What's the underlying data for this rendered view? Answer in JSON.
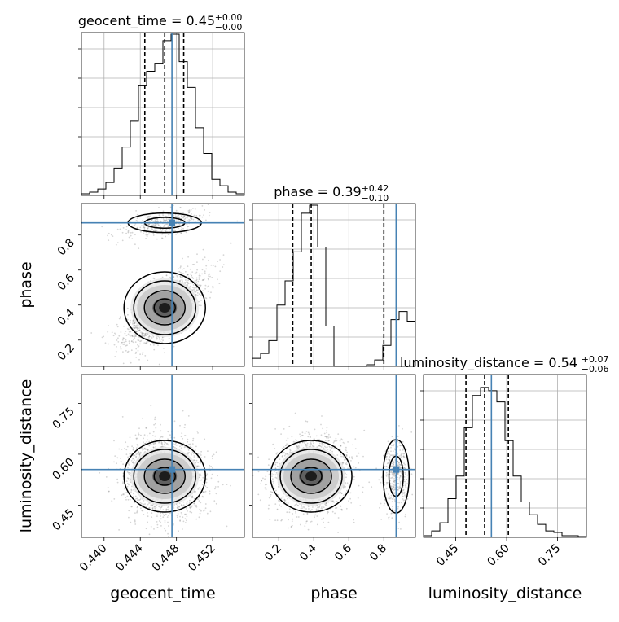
{
  "chart_data": {
    "type": "corner",
    "parameters": [
      "geocent_time",
      "phase",
      "luminosity_distance"
    ],
    "truths": {
      "geocent_time": 0.4475,
      "phase": 0.87,
      "luminosity_distance": 0.555
    },
    "quantiles": [
      0.16,
      0.5,
      0.84
    ],
    "colors": {
      "truth": "#4682b4",
      "quantile": "#000000",
      "histogram": "#000000",
      "scatter": "#888888"
    },
    "grid": true,
    "titles": {
      "geocent_time": {
        "text": "geocent_time = 0.45",
        "plus": "+0.00",
        "minus": "−0.00",
        "median": 0.45,
        "err_plus": 0.0,
        "err_minus": 0.0
      },
      "phase": {
        "text": "phase = 0.39",
        "plus": "+0.42",
        "minus": "−0.10",
        "median": 0.39,
        "err_plus": 0.42,
        "err_minus": 0.1
      },
      "luminosity_distance": {
        "text": "luminosity_distance = 0.54",
        "plus": "+0.07",
        "minus": "−0.06",
        "median": 0.54,
        "err_plus": 0.07,
        "err_minus": 0.06
      }
    },
    "axis_labels": {
      "geocent_time": "geocent_time",
      "phase": "phase",
      "luminosity_distance": "luminosity_distance"
    },
    "ranges": {
      "geocent_time": [
        0.4375,
        0.4555
      ],
      "phase": [
        0.05,
        0.98
      ],
      "luminosity_distance": [
        0.355,
        0.835
      ]
    },
    "ticks": {
      "geocent_time": {
        "values": [
          0.44,
          0.444,
          0.448,
          0.452
        ],
        "labels": [
          "0.440",
          "0.444",
          "0.448",
          "0.452"
        ]
      },
      "phase_x": {
        "values": [
          0.2,
          0.4,
          0.6,
          0.8
        ],
        "labels": [
          "0.2",
          "0.4",
          "0.6",
          "0.8"
        ]
      },
      "phase_y": {
        "values": [
          0.2,
          0.4,
          0.6,
          0.8
        ],
        "labels": [
          "0.2",
          "0.4",
          "0.6",
          "0.8"
        ]
      },
      "luminosity_distance": {
        "values": [
          0.45,
          0.6,
          0.75
        ],
        "labels": [
          "0.45",
          "0.60",
          "0.75"
        ]
      }
    },
    "quantile_values": {
      "geocent_time": [
        0.4445,
        0.4467,
        0.4488
      ],
      "phase": [
        0.28,
        0.385,
        0.8
      ],
      "luminosity_distance": [
        0.48,
        0.535,
        0.605
      ]
    },
    "histograms": {
      "geocent_time": {
        "bin_edges": [
          0.4375,
          0.4384,
          0.4393,
          0.4402,
          0.4411,
          0.442,
          0.4429,
          0.4438,
          0.4447,
          0.4456,
          0.4465,
          0.4474,
          0.4483,
          0.4492,
          0.4501,
          0.451,
          0.4519,
          0.4528,
          0.4537,
          0.4546,
          0.4555
        ],
        "counts": [
          0.01,
          0.02,
          0.04,
          0.08,
          0.17,
          0.3,
          0.46,
          0.68,
          0.77,
          0.82,
          0.96,
          1.0,
          0.83,
          0.67,
          0.42,
          0.26,
          0.1,
          0.06,
          0.02,
          0.01
        ]
      },
      "phase": {
        "bin_edges": [
          0.05,
          0.0965,
          0.143,
          0.1895,
          0.236,
          0.2825,
          0.329,
          0.3755,
          0.422,
          0.4685,
          0.515,
          0.5615,
          0.608,
          0.6545,
          0.701,
          0.7475,
          0.794,
          0.8405,
          0.887,
          0.9335,
          0.98
        ],
        "counts": [
          0.05,
          0.08,
          0.16,
          0.38,
          0.53,
          0.71,
          0.95,
          1.0,
          0.74,
          0.25,
          0.0,
          0.0,
          0.0,
          0.0,
          0.01,
          0.04,
          0.13,
          0.29,
          0.34,
          0.28
        ]
      },
      "luminosity_distance": {
        "bin_edges": [
          0.355,
          0.379,
          0.403,
          0.427,
          0.451,
          0.475,
          0.499,
          0.523,
          0.547,
          0.571,
          0.595,
          0.619,
          0.643,
          0.667,
          0.691,
          0.715,
          0.739,
          0.763,
          0.787,
          0.811,
          0.835
        ],
        "counts": [
          0.01,
          0.04,
          0.09,
          0.24,
          0.38,
          0.68,
          0.88,
          0.93,
          0.91,
          0.84,
          0.6,
          0.38,
          0.22,
          0.14,
          0.08,
          0.04,
          0.03,
          0.01,
          0.01,
          0.005
        ]
      }
    }
  }
}
